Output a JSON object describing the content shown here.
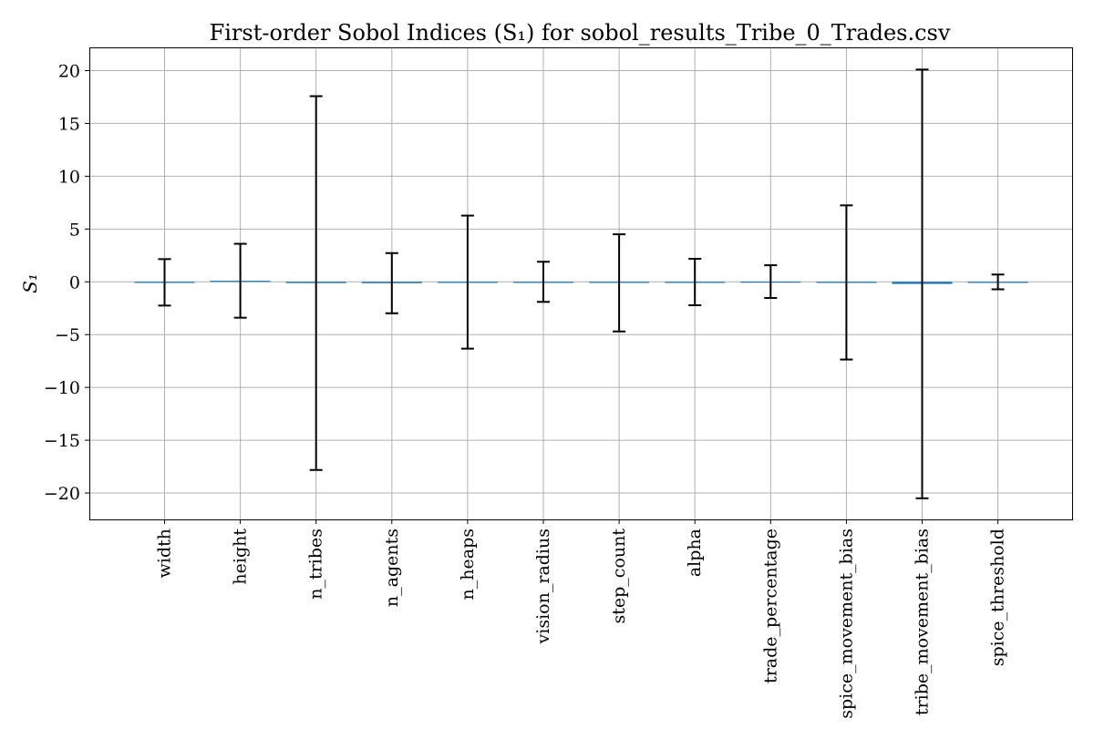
{
  "chart_data": {
    "type": "bar",
    "title": "First-order Sobol Indices (S₁) for sobol_results_Tribe_0_Trades.csv",
    "xlabel": "",
    "ylabel": "S₁",
    "ylim": [
      -22.5,
      22.2
    ],
    "yticks": [
      20,
      15,
      10,
      5,
      0,
      -5,
      -10,
      -15,
      -20
    ],
    "ytick_labels": [
      "20",
      "15",
      "10",
      "5",
      "0",
      "−5",
      "−10",
      "−15",
      "−20"
    ],
    "grid": true,
    "bar_color": "#1f77b4",
    "error_color": "#000000",
    "categories": [
      "width",
      "height",
      "n_tribes",
      "n_agents",
      "n_heaps",
      "vision_radius",
      "step_count",
      "alpha",
      "trade_percentage",
      "spice_movement_bias",
      "tribe_movement_bias",
      "spice_threshold"
    ],
    "values": [
      -0.05,
      0.1,
      -0.12,
      -0.13,
      -0.03,
      0.0,
      -0.1,
      -0.02,
      0.02,
      -0.06,
      -0.2,
      -0.01
    ],
    "errors": [
      2.2,
      3.5,
      17.7,
      2.85,
      6.3,
      1.9,
      4.6,
      2.2,
      1.55,
      7.3,
      20.3,
      0.7
    ]
  }
}
